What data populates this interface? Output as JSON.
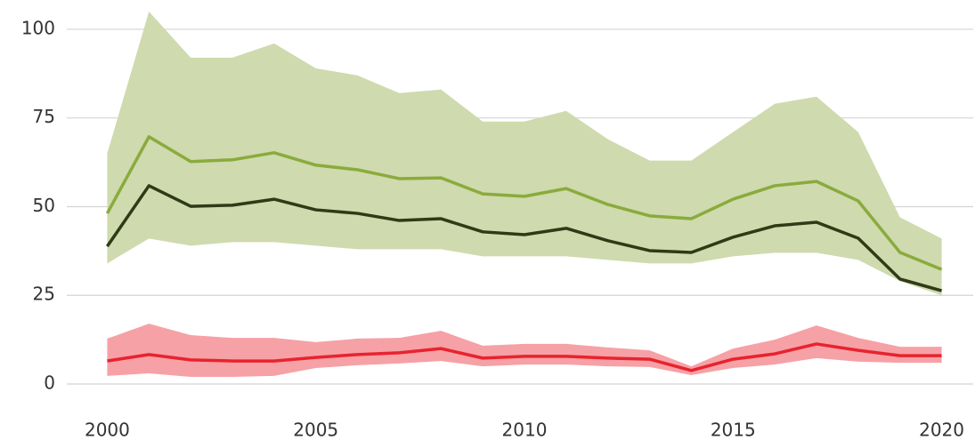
{
  "chart_data": {
    "type": "line",
    "x": [
      2000,
      2001,
      2002,
      2003,
      2004,
      2005,
      2006,
      2007,
      2008,
      2009,
      2010,
      2011,
      2012,
      2013,
      2014,
      2015,
      2016,
      2017,
      2018,
      2019,
      2020
    ],
    "xlim": [
      1999.5,
      2020.5
    ],
    "xticks": [
      2000,
      2005,
      2010,
      2015,
      2020
    ],
    "ylim": [
      -2,
      107
    ],
    "yticks": [
      0,
      25,
      50,
      75,
      100
    ],
    "grid": true,
    "bands": [
      {
        "color": "#cfdaae",
        "upper": [
          65,
          105,
          92,
          92,
          96,
          89,
          87,
          82,
          83,
          74,
          74,
          77,
          69,
          63,
          63,
          71,
          79,
          81,
          71,
          47,
          41
        ],
        "lower": [
          34,
          41,
          39,
          40,
          40,
          39,
          38,
          38,
          38,
          36,
          36,
          36,
          35,
          34,
          34,
          36,
          37,
          37,
          35,
          29,
          25
        ]
      },
      {
        "color": "#f6a1a6",
        "upper": [
          12.8,
          17,
          13.8,
          13,
          13,
          11.8,
          12.8,
          13,
          15,
          10.8,
          11.3,
          11.3,
          10.3,
          9.5,
          5,
          10,
          12.5,
          16.5,
          13,
          10.5,
          10.5
        ],
        "lower": [
          2.3,
          3,
          2,
          2,
          2.3,
          4.5,
          5.3,
          5.8,
          6.5,
          5,
          5.5,
          5.5,
          5,
          4.8,
          2.5,
          4.5,
          5.5,
          7.3,
          6.3,
          6,
          6
        ]
      }
    ],
    "series": [
      {
        "color": "#8aab3c",
        "values": [
          48.1,
          69.7,
          62.7,
          63.2,
          65.2,
          61.7,
          60.4,
          57.9,
          58.1,
          53.6,
          52.9,
          55.1,
          50.6,
          47.4,
          46.6,
          52.1,
          55.9,
          57.1,
          51.6,
          37.1,
          32.3
        ]
      },
      {
        "color": "#2f3a17",
        "values": [
          38.8,
          55.9,
          50.1,
          50.4,
          52.1,
          49.1,
          48.1,
          46.1,
          46.6,
          42.9,
          42.1,
          43.9,
          40.4,
          37.6,
          37.1,
          41.4,
          44.6,
          45.6,
          41.1,
          29.6,
          26.3
        ]
      },
      {
        "color": "#e8232e",
        "values": [
          6.5,
          8.3,
          6.8,
          6.5,
          6.5,
          7.5,
          8.3,
          8.8,
          10,
          7.3,
          7.8,
          7.8,
          7.3,
          7,
          3.8,
          7,
          8.5,
          11.3,
          9.5,
          8,
          8
        ]
      }
    ]
  }
}
